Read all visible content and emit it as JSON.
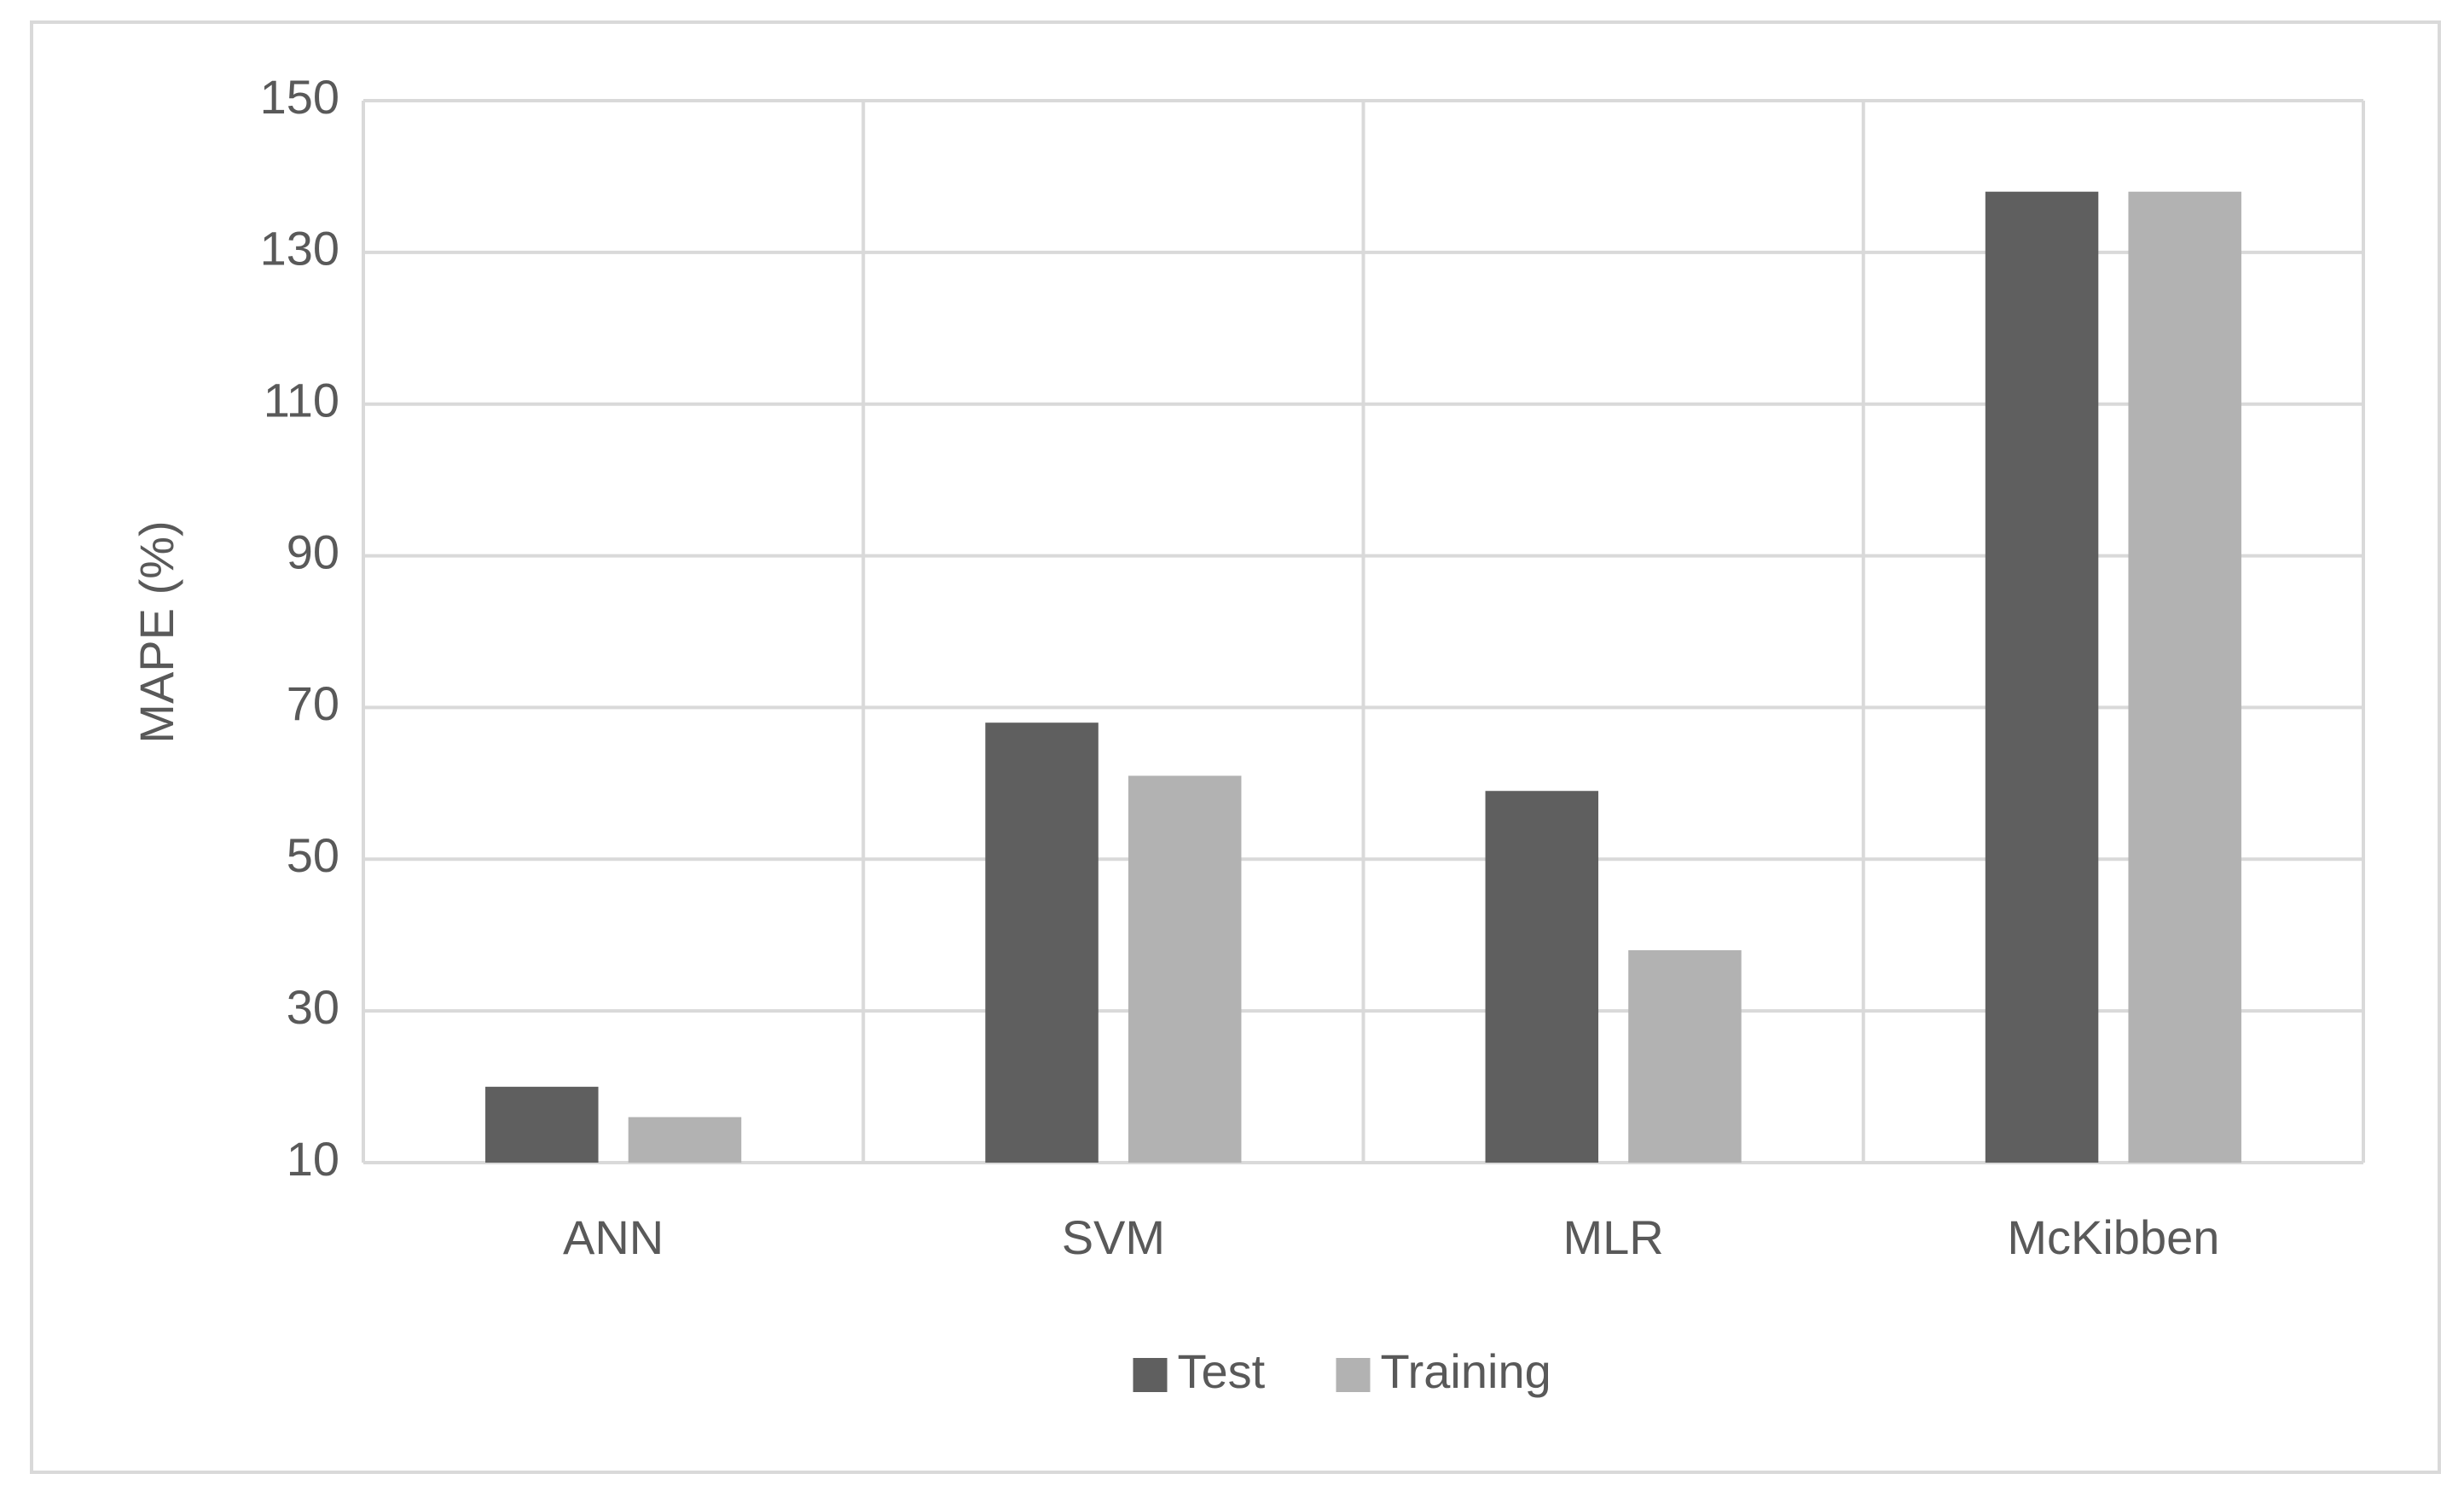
{
  "chart_data": {
    "type": "bar",
    "y_label": "MAPE (%)",
    "categories": [
      "ANN",
      "SVM",
      "MLR",
      "McKibben"
    ],
    "series": [
      {
        "name": "Test",
        "color": "#5f5f5f",
        "values": [
          20,
          68,
          59,
          138
        ]
      },
      {
        "name": "Training",
        "color": "#b2b2b2",
        "values": [
          16,
          61,
          38,
          138
        ]
      }
    ],
    "ylim": [
      10,
      150
    ],
    "yticks": [
      10,
      30,
      50,
      70,
      90,
      110,
      130,
      150
    ],
    "grid": true,
    "legend": "bottom"
  }
}
